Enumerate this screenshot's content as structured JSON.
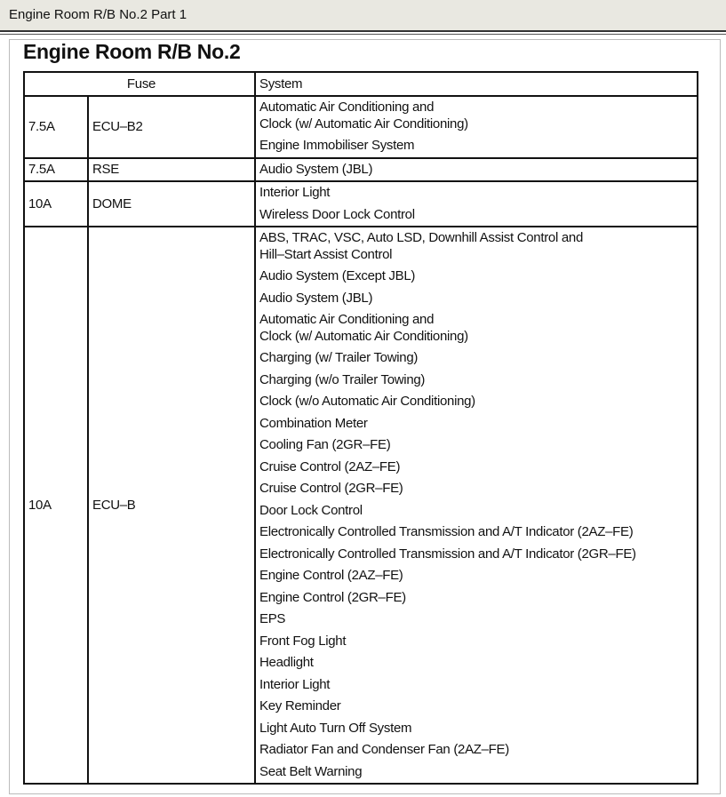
{
  "window": {
    "title": "Engine Room R/B No.2 Part 1"
  },
  "document": {
    "heading": "Engine Room R/B No.2",
    "columns": {
      "fuse": "Fuse",
      "system": "System"
    },
    "rows": [
      {
        "amperage": "7.5A",
        "name": "ECU–B2",
        "systems": [
          "Automatic Air Conditioning and\nClock (w/ Automatic Air Conditioning)",
          "Engine Immobiliser System"
        ]
      },
      {
        "amperage": "7.5A",
        "name": "RSE",
        "systems": [
          "Audio System (JBL)"
        ]
      },
      {
        "amperage": "10A",
        "name": "DOME",
        "systems": [
          "Interior Light",
          "Wireless Door Lock Control"
        ]
      },
      {
        "amperage": "10A",
        "name": "ECU–B",
        "systems": [
          "ABS, TRAC, VSC, Auto LSD, Downhill Assist Control and\nHill–Start Assist Control",
          "Audio System (Except JBL)",
          "Audio System (JBL)",
          "Automatic Air Conditioning and\nClock (w/ Automatic Air Conditioning)",
          "Charging (w/ Trailer Towing)",
          "Charging (w/o Trailer Towing)",
          "Clock (w/o Automatic Air Conditioning)",
          "Combination Meter",
          "Cooling Fan (2GR–FE)",
          "Cruise Control (2AZ–FE)",
          "Cruise Control (2GR–FE)",
          "Door Lock Control",
          "Electronically Controlled Transmission and A/T Indicator (2AZ–FE)",
          "Electronically Controlled Transmission and A/T Indicator (2GR–FE)",
          "Engine Control (2AZ–FE)",
          "Engine Control (2GR–FE)",
          "EPS",
          "Front Fog Light",
          "Headlight",
          "Interior Light",
          "Key Reminder",
          "Light Auto Turn Off System",
          "Radiator Fan and Condenser Fan (2AZ–FE)",
          "Seat Belt Warning"
        ]
      }
    ]
  }
}
